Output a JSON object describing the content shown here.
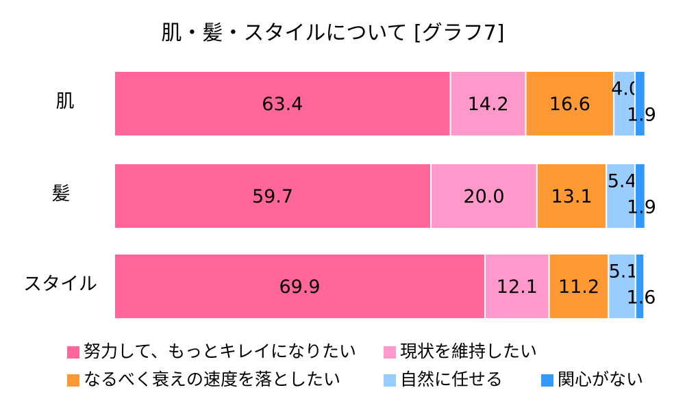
{
  "chart_data": {
    "type": "bar",
    "orientation": "horizontal",
    "stacked": true,
    "normalized_percent": true,
    "title": "肌・髪・スタイルについて [グラフ7]",
    "categories": [
      "肌",
      "髪",
      "スタイル"
    ],
    "series": [
      {
        "name": "努力して、もっとキレイになりたい",
        "color": "#FF6699",
        "values": [
          63.4,
          59.7,
          69.9
        ],
        "labels": [
          "63.4",
          "59.7",
          "69.9"
        ]
      },
      {
        "name": "現状を維持したい",
        "color": "#FF99CC",
        "values": [
          14.2,
          20.0,
          12.1
        ],
        "labels": [
          "14.2",
          "20.0",
          "12.1"
        ]
      },
      {
        "name": "なるべく衰えの速度を落としたい",
        "color": "#FF9933",
        "values": [
          16.6,
          13.1,
          11.2
        ],
        "labels": [
          "16.6",
          "13.1",
          "11.2"
        ]
      },
      {
        "name": "自然に任せる",
        "color": "#99CCFF",
        "values": [
          4.0,
          5.4,
          5.1
        ],
        "labels": [
          "4.0",
          "5.4",
          "5.1"
        ]
      },
      {
        "name": "関心がない",
        "color": "#3399FF",
        "values": [
          1.9,
          1.9,
          1.6
        ],
        "labels": [
          "1.9",
          "1.9",
          "1.6"
        ]
      }
    ],
    "xlim": [
      0,
      100
    ],
    "grid": false,
    "legend_position": "bottom"
  }
}
